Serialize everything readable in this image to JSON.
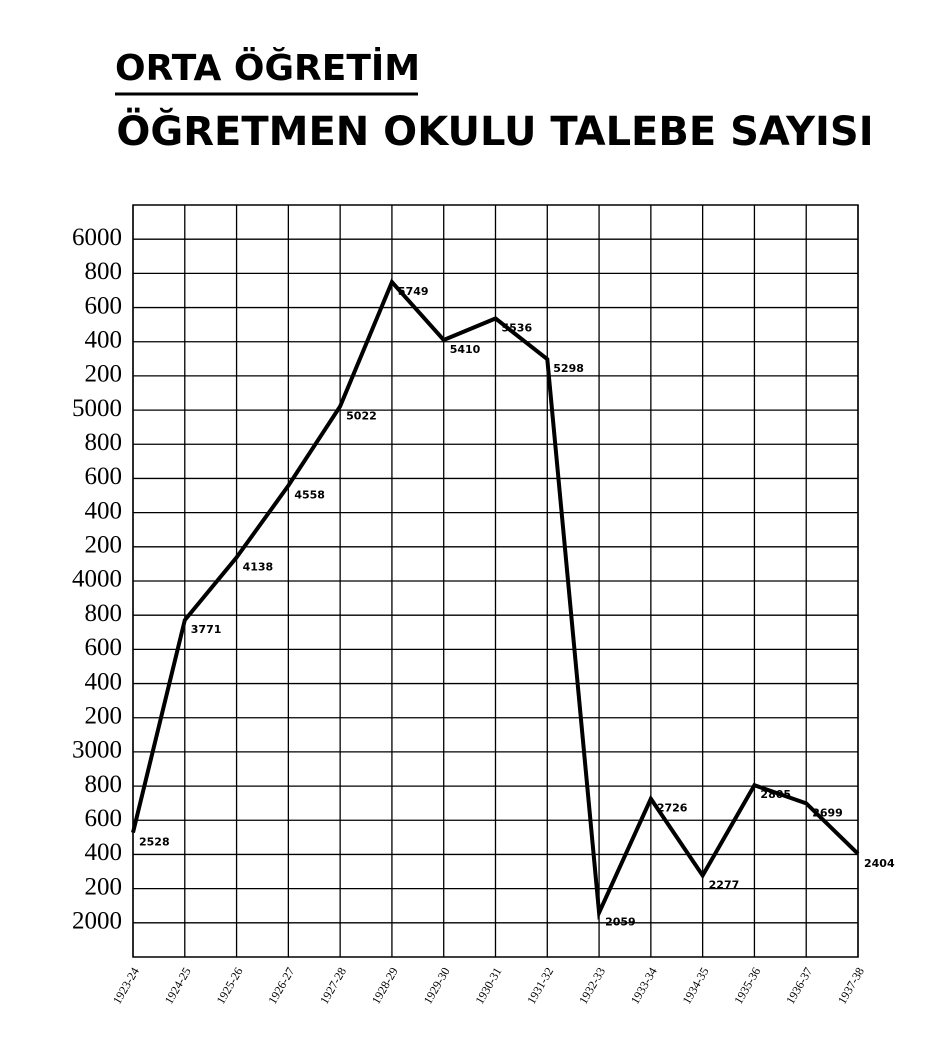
{
  "chart_data": {
    "type": "line",
    "title": "ORTA ÖĞRETİM",
    "subtitle": "ÖĞRETMEN OKULU TALEBE SAYISI",
    "categories": [
      "1923-24",
      "1924-25",
      "1925-26",
      "1926-27",
      "1927-28",
      "1928-29",
      "1929-30",
      "1930-31",
      "1931-32",
      "1932-33",
      "1933-34",
      "1934-35",
      "1935-36",
      "1936-37",
      "1937-38"
    ],
    "series": [
      {
        "name": "Talebe sayısı",
        "color": "#000000",
        "values": [
          2528,
          3771,
          4138,
          4558,
          5022,
          5749,
          5410,
          5536,
          5298,
          2059,
          2726,
          2277,
          2805,
          2699,
          2404
        ]
      }
    ],
    "ylim": [
      1800,
      6200
    ],
    "yticks": [
      2000,
      {
        "value": 2200,
        "label": "200"
      },
      {
        "value": 2400,
        "label": "400"
      },
      {
        "value": 2600,
        "label": "600"
      },
      {
        "value": 2800,
        "label": "800"
      },
      3000,
      {
        "value": 3200,
        "label": "200"
      },
      {
        "value": 3400,
        "label": "400"
      },
      {
        "value": 3600,
        "label": "600"
      },
      {
        "value": 3800,
        "label": "800"
      },
      4000,
      {
        "value": 4200,
        "label": "200"
      },
      {
        "value": 4400,
        "label": "400"
      },
      {
        "value": 4600,
        "label": "600"
      },
      {
        "value": 4800,
        "label": "800"
      },
      5000,
      {
        "value": 5200,
        "label": "200"
      },
      {
        "value": 5400,
        "label": "400"
      },
      {
        "value": 5600,
        "label": "600"
      },
      {
        "value": 5800,
        "label": "800"
      },
      6000
    ],
    "grid": true
  }
}
